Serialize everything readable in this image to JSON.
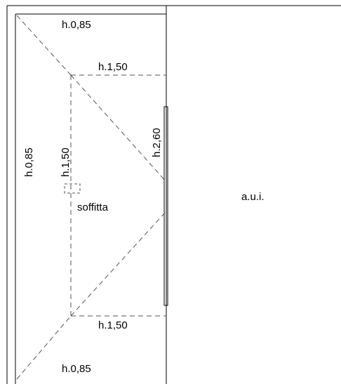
{
  "labels": {
    "top_height": "h.0,85",
    "bottom_height": "h.0,85",
    "left_height": "h.0,85",
    "ridge_top": "h.1,50",
    "ridge_bottom": "h.1,50",
    "ridge_vertical": "h.1,50",
    "right_height": "h.2,60",
    "room_name": "soffitta",
    "adjacent_unit": "a.u.i."
  }
}
